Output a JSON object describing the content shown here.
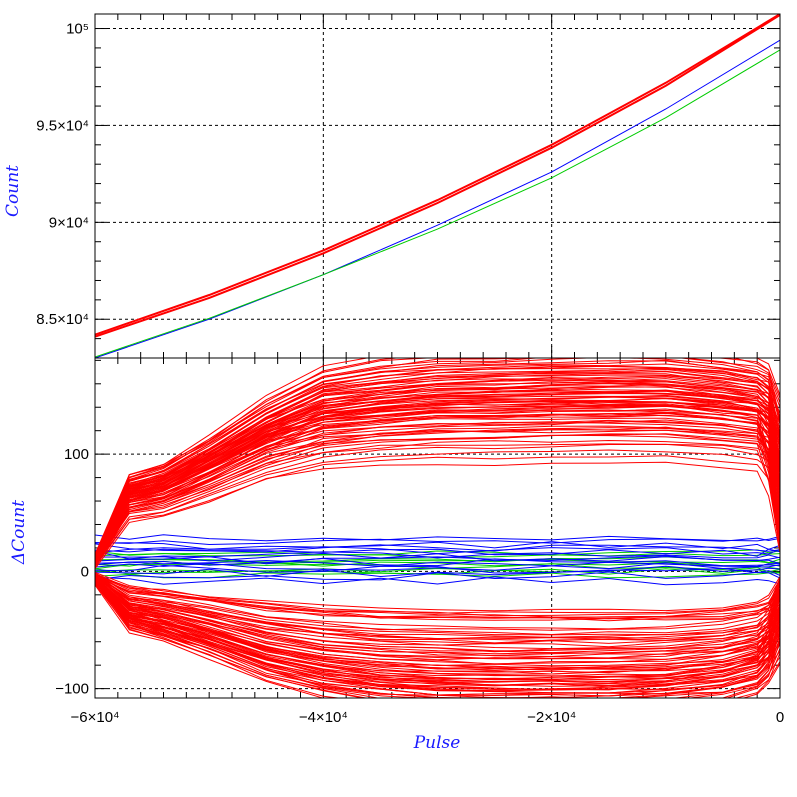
{
  "chart_data": [
    {
      "type": "line",
      "panel": "top",
      "title": "",
      "xlabel": "",
      "ylabel": "Count",
      "xlim": [
        -60000,
        0
      ],
      "ylim": [
        83000,
        100750
      ],
      "grid": true,
      "y_ticks": [
        {
          "value": 85000,
          "label": "8.5×10⁴"
        },
        {
          "value": 90000,
          "label": "9×10⁴"
        },
        {
          "value": 95000,
          "label": "9.5×10⁴"
        },
        {
          "value": 100000,
          "label": "10⁵"
        }
      ],
      "series": [
        {
          "color": "#ff0000",
          "x": [
            -60000,
            -50000,
            -40000,
            -30000,
            -20000,
            -10000,
            0
          ],
          "values": [
            84100,
            86100,
            88400,
            91000,
            93850,
            97050,
            100700
          ]
        },
        {
          "color": "#ff0000",
          "x": [
            -60000,
            -50000,
            -40000,
            -30000,
            -20000,
            -10000,
            0
          ],
          "values": [
            84200,
            86250,
            88550,
            91150,
            94000,
            97200,
            100750
          ]
        },
        {
          "color": "#0000ff",
          "x": [
            -60000,
            -50000,
            -40000,
            -30000,
            -20000,
            -10000,
            0
          ],
          "values": [
            83000,
            85000,
            87300,
            89850,
            92600,
            95850,
            99400
          ]
        },
        {
          "color": "#00cc00",
          "x": [
            -60000,
            -50000,
            -40000,
            -30000,
            -20000,
            -10000,
            0
          ],
          "values": [
            83050,
            85050,
            87300,
            89650,
            92300,
            95400,
            98900
          ]
        }
      ]
    },
    {
      "type": "line",
      "panel": "bottom",
      "title": "",
      "xlabel": "Pulse",
      "ylabel": "ΔCount",
      "xlim": [
        -60000,
        0
      ],
      "ylim": [
        -108,
        182
      ],
      "grid": true,
      "x_ticks": [
        {
          "value": -60000,
          "label": "−6×10⁴"
        },
        {
          "value": -40000,
          "label": "−4×10⁴"
        },
        {
          "value": -20000,
          "label": "−2×10⁴"
        },
        {
          "value": 0,
          "label": "0"
        }
      ],
      "y_ticks": [
        {
          "value": -100,
          "label": "−100"
        },
        {
          "value": 0,
          "label": "0"
        },
        {
          "value": 100,
          "label": "100"
        }
      ],
      "x": [
        -60000,
        -57000,
        -54000,
        -50000,
        -45000,
        -40000,
        -35000,
        -30000,
        -25000,
        -20000,
        -15000,
        -10000,
        -5000,
        -2000,
        -1000,
        0
      ],
      "red_upper_shapes": [
        [
          4,
          52,
          58,
          75,
          98,
          108,
          112,
          114,
          114,
          115,
          115,
          115,
          112,
          108,
          80,
          20
        ],
        [
          5,
          55,
          60,
          77,
          100,
          112,
          117,
          120,
          120,
          121,
          122,
          122,
          118,
          114,
          100,
          30
        ],
        [
          6,
          57,
          63,
          80,
          103,
          118,
          122,
          125,
          126,
          127,
          128,
          128,
          124,
          120,
          110,
          45
        ],
        [
          7,
          59,
          65,
          83,
          106,
          123,
          128,
          131,
          132,
          133,
          134,
          134,
          130,
          126,
          118,
          60
        ],
        [
          8,
          61,
          68,
          86,
          110,
          128,
          133,
          137,
          138,
          139,
          140,
          140,
          136,
          132,
          125,
          75
        ],
        [
          9,
          63,
          70,
          88,
          113,
          133,
          138,
          142,
          143,
          144,
          145,
          145,
          141,
          137,
          131,
          90
        ],
        [
          10,
          65,
          72,
          90,
          116,
          137,
          143,
          147,
          148,
          149,
          150,
          150,
          146,
          142,
          137,
          105
        ],
        [
          11,
          67,
          74,
          92,
          119,
          140,
          147,
          151,
          152,
          153,
          154,
          154,
          150,
          146,
          142,
          120
        ]
      ],
      "red_upper_scales": [
        0.8,
        0.95,
        1.0,
        1.05,
        1.1,
        1.13,
        1.16,
        1.19,
        1.22,
        1.25
      ],
      "red_lower_shapes": [
        [
          -4,
          -38,
          -45,
          -58,
          -75,
          -85,
          -92,
          -95,
          -96,
          -96,
          -96,
          -93,
          -85,
          -75,
          -55,
          -10
        ],
        [
          -5,
          -40,
          -48,
          -61,
          -79,
          -90,
          -97,
          -100,
          -101,
          -101,
          -101,
          -98,
          -90,
          -80,
          -65,
          -20
        ],
        [
          -6,
          -42,
          -50,
          -64,
          -82,
          -94,
          -101,
          -104,
          -105,
          -105,
          -105,
          -102,
          -95,
          -85,
          -72,
          -30
        ],
        [
          -7,
          -44,
          -52,
          -66,
          -85,
          -97,
          -104,
          -107,
          -108,
          -108,
          -108,
          -106,
          -100,
          -90,
          -78,
          -40
        ],
        [
          -8,
          -46,
          -54,
          -68,
          -88,
          -100,
          -107,
          -110,
          -111,
          -111,
          -111,
          -109,
          -104,
          -95,
          -84,
          -50
        ],
        [
          -9,
          -48,
          -56,
          -70,
          -90,
          -103,
          -110,
          -113,
          -114,
          -114,
          -114,
          -112,
          -108,
          -99,
          -89,
          -60
        ],
        [
          -10,
          -50,
          -58,
          -72,
          -92,
          -106,
          -113,
          -116,
          -117,
          -117,
          -117,
          -115,
          -111,
          -103,
          -93,
          -70
        ],
        [
          -11,
          -52,
          -60,
          -74,
          -94,
          -108,
          -115,
          -118,
          -119,
          -119,
          -119,
          -117,
          -114,
          -106,
          -96,
          -80
        ]
      ],
      "red_lower_scales": [
        0.35,
        0.5,
        0.6,
        0.7,
        0.78,
        0.85,
        0.9,
        0.95,
        1.0
      ],
      "blue_levels": [
        -8,
        -4,
        -1,
        2,
        4,
        6,
        8,
        10,
        12,
        14,
        16,
        18,
        20,
        22,
        25,
        28
      ],
      "green_levels": [
        -3,
        0,
        2,
        4,
        6,
        8,
        10,
        13,
        16
      ]
    }
  ]
}
